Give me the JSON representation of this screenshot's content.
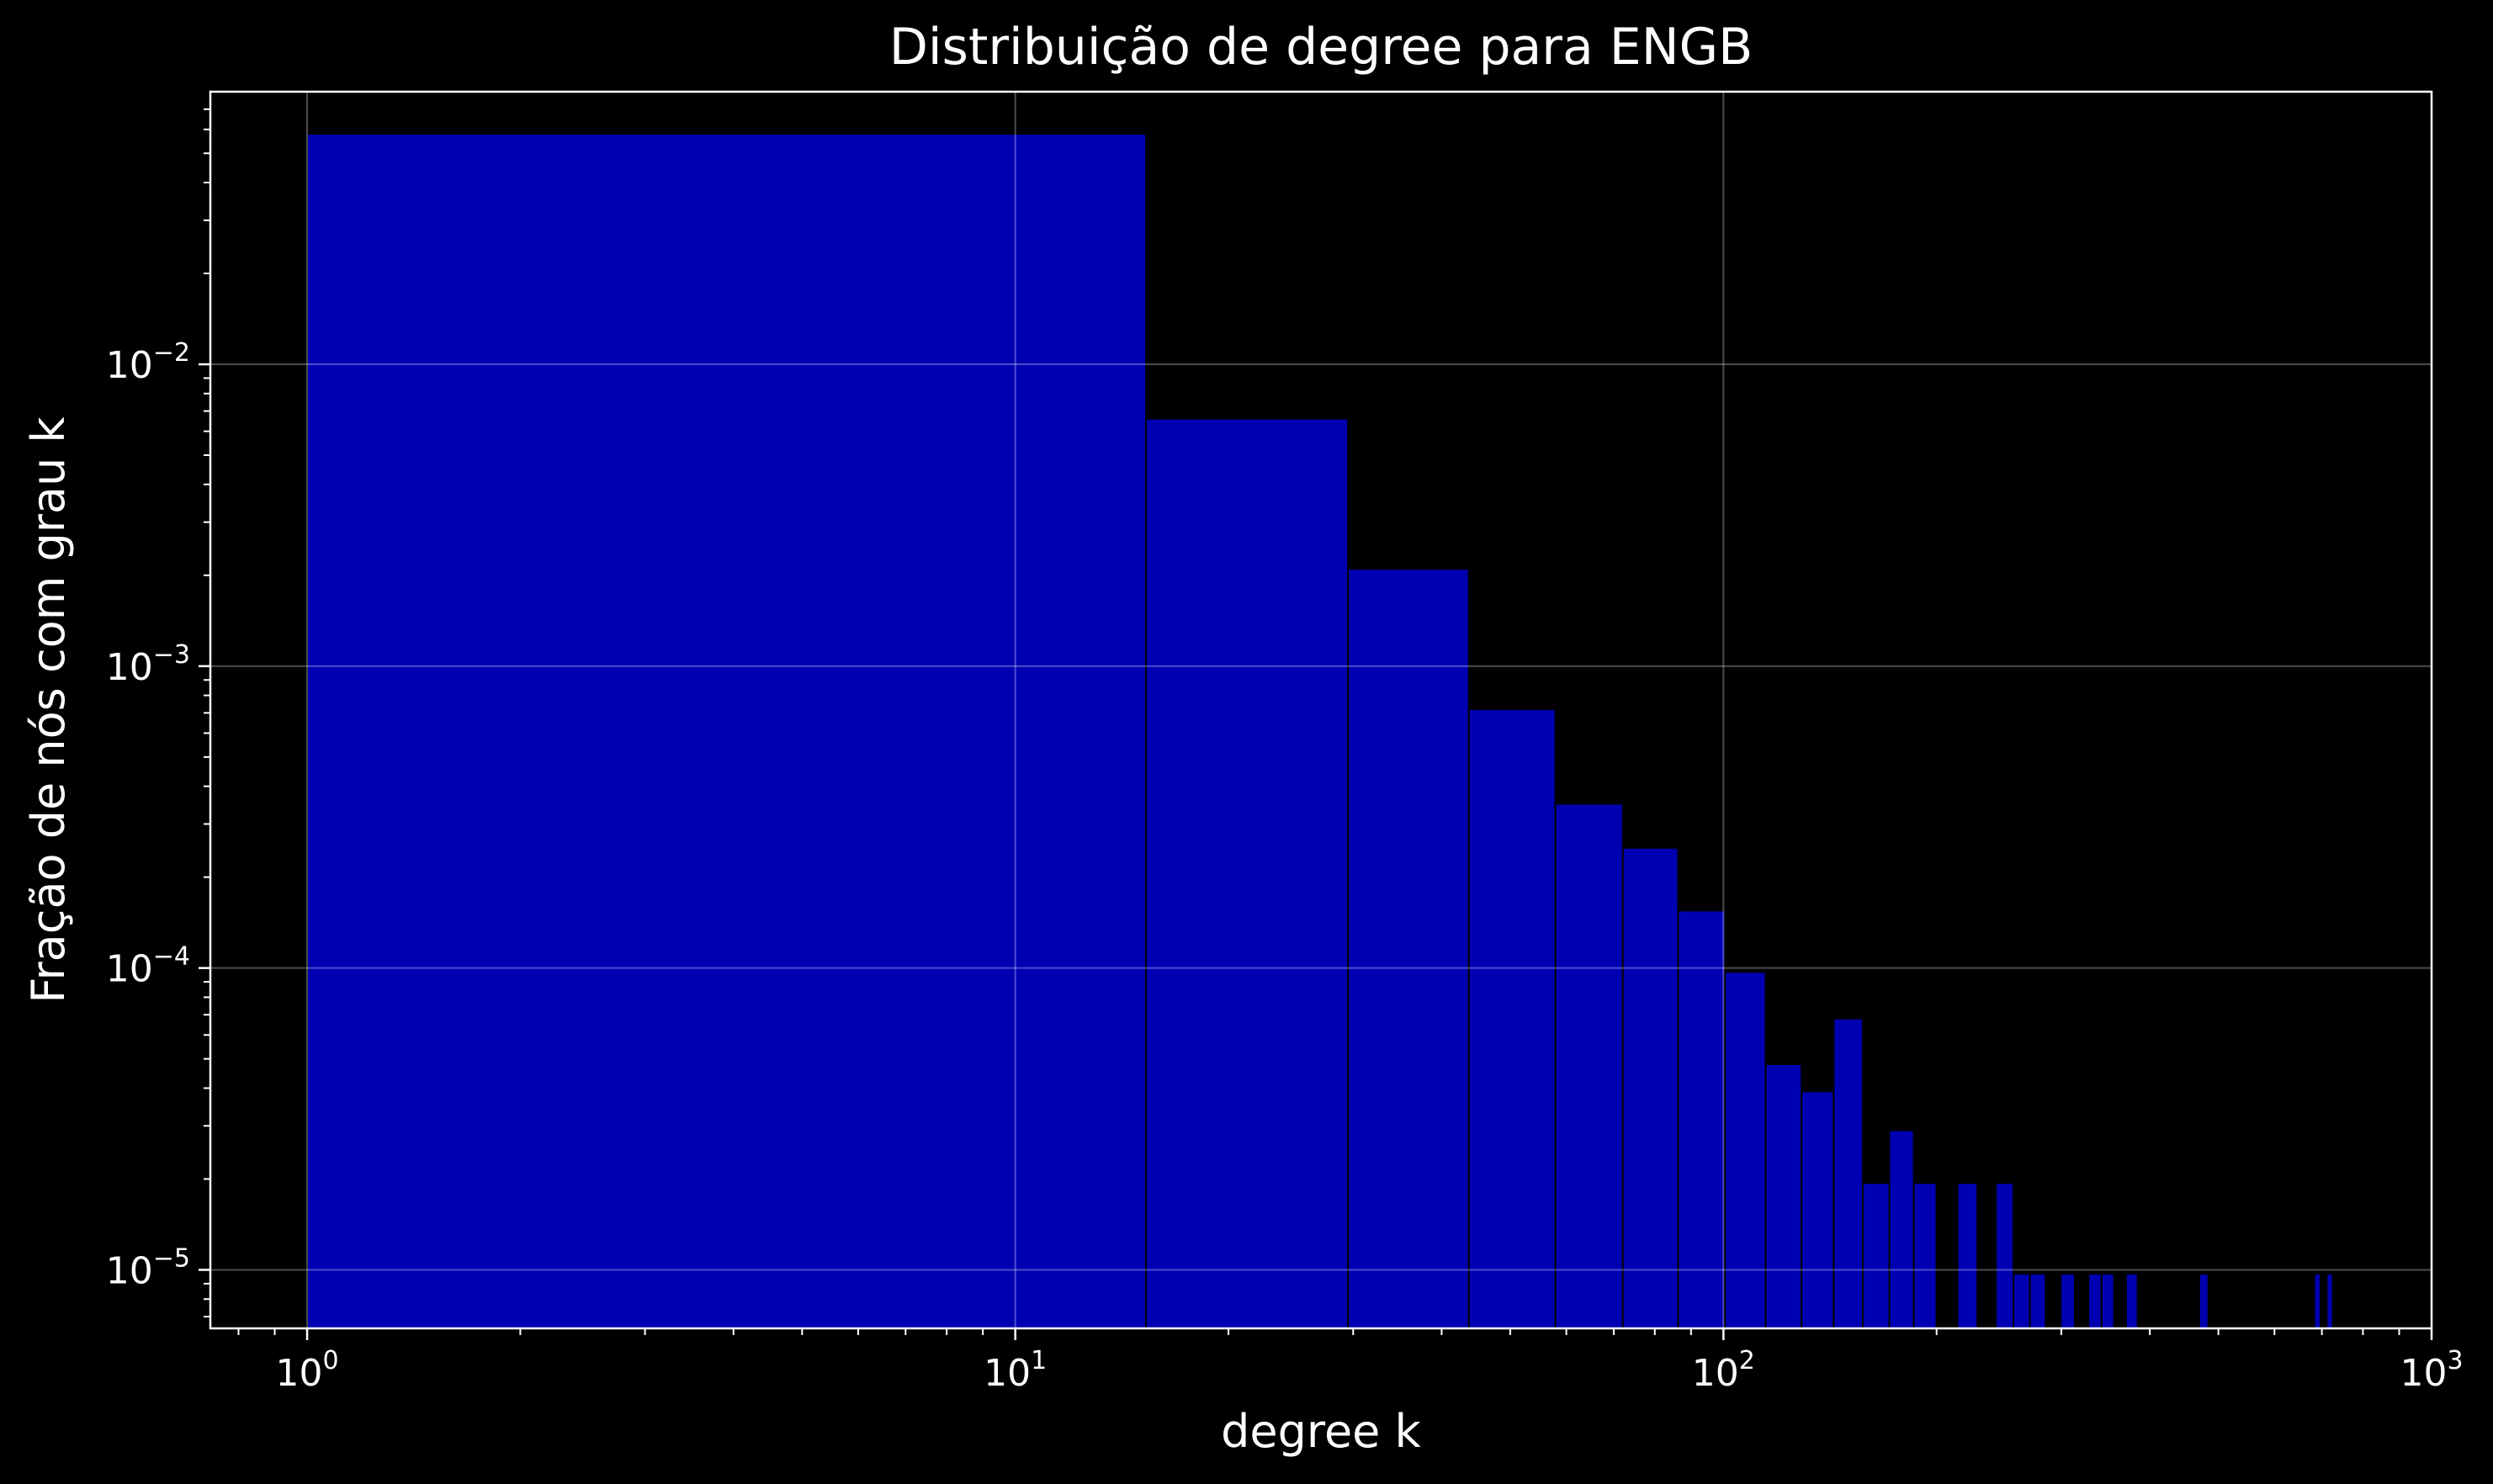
{
  "chart_data": {
    "type": "bar",
    "title": "Distribuição de degree para ENGB",
    "xlabel": "degree k",
    "ylabel": "Fração de nós com grau k",
    "x_scale": "log",
    "y_scale": "log",
    "xlim": [
      0.73,
      1000
    ],
    "ylim": [
      6.4e-06,
      0.08
    ],
    "grid": true,
    "bar_color": "#0000b3",
    "edge_color": "#000000",
    "background": "#000000",
    "foreground": "#ffffff",
    "x_ticks": [
      {
        "base": "10",
        "exp": "0",
        "value": 1
      },
      {
        "base": "10",
        "exp": "1",
        "value": 10
      },
      {
        "base": "10",
        "exp": "2",
        "value": 100
      },
      {
        "base": "10",
        "exp": "3",
        "value": 1000
      }
    ],
    "y_ticks": [
      {
        "base": "10",
        "exp": "−5",
        "value": 1e-05
      },
      {
        "base": "10",
        "exp": "−4",
        "value": 0.0001
      },
      {
        "base": "10",
        "exp": "−3",
        "value": 0.001
      },
      {
        "base": "10",
        "exp": "−2",
        "value": 0.01
      }
    ],
    "bars": [
      {
        "x0": 1,
        "x1": 15.3,
        "value": 0.058
      },
      {
        "x0": 15.3,
        "x1": 29.5,
        "value": 0.0066
      },
      {
        "x0": 29.5,
        "x1": 43.7,
        "value": 0.0021
      },
      {
        "x0": 43.7,
        "x1": 57.9,
        "value": 0.00072
      },
      {
        "x0": 57.9,
        "x1": 72.1,
        "value": 0.00035
      },
      {
        "x0": 72.1,
        "x1": 86.3,
        "value": 0.00025
      },
      {
        "x0": 86.3,
        "x1": 100.5,
        "value": 0.000155
      },
      {
        "x0": 100.5,
        "x1": 114.7,
        "value": 9.7e-05
      },
      {
        "x0": 114.7,
        "x1": 128.9,
        "value": 4.8e-05
      },
      {
        "x0": 128.9,
        "x1": 143.1,
        "value": 3.9e-05
      },
      {
        "x0": 143.1,
        "x1": 157.3,
        "value": 6.8e-05
      },
      {
        "x0": 157.3,
        "x1": 171.5,
        "value": 1.94e-05
      },
      {
        "x0": 171.5,
        "x1": 185.7,
        "value": 2.9e-05
      },
      {
        "x0": 185.7,
        "x1": 199.9,
        "value": 1.94e-05
      },
      {
        "x0": 214.1,
        "x1": 228.3,
        "value": 1.94e-05
      },
      {
        "x0": 242.5,
        "x1": 256.7,
        "value": 1.94e-05
      },
      {
        "x0": 256.7,
        "x1": 270.9,
        "value": 9.7e-06
      },
      {
        "x0": 270.9,
        "x1": 285.1,
        "value": 9.7e-06
      },
      {
        "x0": 299.3,
        "x1": 313.5,
        "value": 9.7e-06
      },
      {
        "x0": 327.7,
        "x1": 341.9,
        "value": 9.7e-06
      },
      {
        "x0": 341.9,
        "x1": 356.1,
        "value": 9.7e-06
      },
      {
        "x0": 370.3,
        "x1": 384.5,
        "value": 9.7e-06
      },
      {
        "x0": 469.7,
        "x1": 483.9,
        "value": 9.7e-06
      },
      {
        "x0": 682.7,
        "x1": 696.9,
        "value": 9.7e-06
      },
      {
        "x0": 711.1,
        "x1": 725.3,
        "value": 9.7e-06
      }
    ]
  }
}
